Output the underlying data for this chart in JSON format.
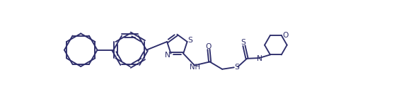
{
  "bg_color": "#ffffff",
  "line_color": "#2d2d6b",
  "line_width": 1.35,
  "font_size": 7.2,
  "fig_width": 5.64,
  "fig_height": 1.4,
  "dpi": 100,
  "xlim": [
    0.0,
    10.5
  ],
  "ylim": [
    -0.7,
    1.8
  ]
}
